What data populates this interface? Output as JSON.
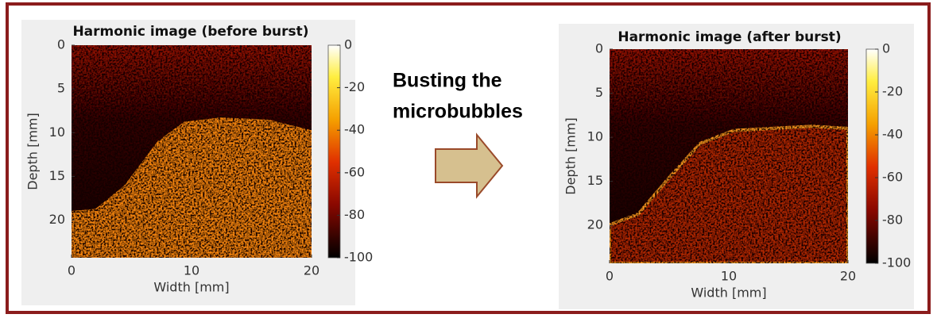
{
  "panels": [
    {
      "title": "Harmonic image (before burst)",
      "xlabel": "Width [mm]",
      "ylabel": "Depth [mm]",
      "xlim": [
        0,
        20
      ],
      "xticks": [
        0,
        10,
        20
      ],
      "ylim": [
        0,
        24.3
      ],
      "yticks": [
        0,
        5,
        10,
        15,
        20
      ],
      "clim": [
        -100,
        0
      ],
      "cticks": [
        0,
        -20,
        -40,
        -60,
        -80,
        -100
      ]
    },
    {
      "title": "Harmonic image (after burst)",
      "xlabel": "Width [mm]",
      "ylabel": "Depth [mm]",
      "xlim": [
        0,
        20
      ],
      "xticks": [
        0,
        10,
        20
      ],
      "ylim": [
        0,
        24.3
      ],
      "yticks": [
        0,
        5,
        10,
        15,
        20
      ],
      "clim": [
        -100,
        0
      ],
      "cticks": [
        0,
        -20,
        -40,
        -60,
        -80,
        -100
      ]
    }
  ],
  "caption": [
    "Busting the",
    "microbubbles"
  ]
}
